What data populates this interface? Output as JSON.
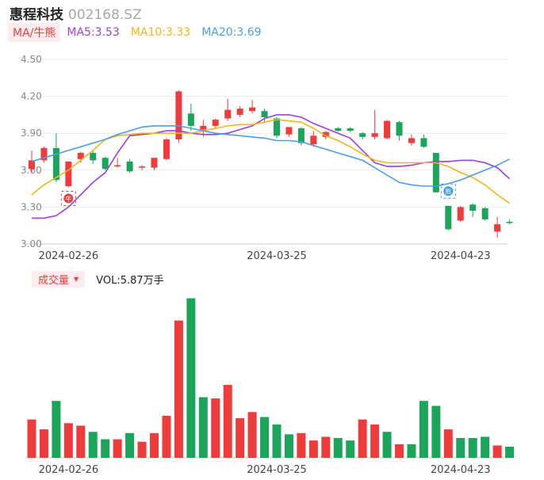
{
  "header": {
    "name": "惠程科技",
    "code": "002168.SZ"
  },
  "ma_bar": {
    "toggle_label": "MA/牛熊",
    "items": [
      {
        "label": "MA5:3.53",
        "color": "#9b3fe0"
      },
      {
        "label": "MA10:3.33",
        "color": "#f2b51c"
      },
      {
        "label": "MA20:3.69",
        "color": "#4a9de8"
      }
    ]
  },
  "volume_bar": {
    "toggle_label": "成交量",
    "value_label": "VOL:5.87万手"
  },
  "colors": {
    "up": "#ee3b3b",
    "down": "#1aa55b",
    "ma5": "#9b3fe0",
    "ma10": "#f2b51c",
    "ma20": "#4a9de8",
    "grid": "#e9e9e9"
  },
  "markers": [
    {
      "icon": "bull-icon",
      "glyph": "牛",
      "color": "#e8413f"
    },
    {
      "icon": "bear-icon",
      "glyph": "熊",
      "color": "#3a9be6"
    }
  ],
  "chart_data": {
    "type": "candlestick",
    "price_axis": {
      "ticks": [
        "4.50",
        "4.20",
        "3.90",
        "3.60",
        "3.30",
        "3.00"
      ],
      "ylim": [
        3.0,
        4.5
      ]
    },
    "x_tick_labels": [
      "2024-02-26",
      "2024-03-25",
      "2024-04-23"
    ],
    "candles": [
      {
        "o": 3.61,
        "c": 3.68,
        "h": 3.76,
        "l": 3.58
      },
      {
        "o": 3.68,
        "c": 3.78,
        "h": 3.79,
        "l": 3.66
      },
      {
        "o": 3.78,
        "c": 3.52,
        "h": 3.9,
        "l": 3.5
      },
      {
        "o": 3.47,
        "c": 3.67,
        "h": 3.67,
        "l": 3.46
      },
      {
        "o": 3.69,
        "c": 3.74,
        "h": 3.75,
        "l": 3.66
      },
      {
        "o": 3.74,
        "c": 3.68,
        "h": 3.76,
        "l": 3.65
      },
      {
        "o": 3.7,
        "c": 3.61,
        "h": 3.71,
        "l": 3.6
      },
      {
        "o": 3.63,
        "c": 3.64,
        "h": 3.7,
        "l": 3.62
      },
      {
        "o": 3.67,
        "c": 3.59,
        "h": 3.69,
        "l": 3.58
      },
      {
        "o": 3.62,
        "c": 3.63,
        "h": 3.64,
        "l": 3.6
      },
      {
        "o": 3.62,
        "c": 3.7,
        "h": 3.7,
        "l": 3.6
      },
      {
        "o": 3.69,
        "c": 3.85,
        "h": 3.86,
        "l": 3.68
      },
      {
        "o": 3.85,
        "c": 4.24,
        "h": 4.25,
        "l": 3.82
      },
      {
        "o": 4.06,
        "c": 3.96,
        "h": 4.14,
        "l": 3.92
      },
      {
        "o": 3.93,
        "c": 3.96,
        "h": 4.01,
        "l": 3.87
      },
      {
        "o": 3.96,
        "c": 4.01,
        "h": 4.02,
        "l": 3.94
      },
      {
        "o": 4.02,
        "c": 4.09,
        "h": 4.18,
        "l": 4.0
      },
      {
        "o": 4.05,
        "c": 4.1,
        "h": 4.12,
        "l": 4.03
      },
      {
        "o": 4.08,
        "c": 4.11,
        "h": 4.17,
        "l": 4.06
      },
      {
        "o": 4.08,
        "c": 4.03,
        "h": 4.1,
        "l": 3.99
      },
      {
        "o": 4.02,
        "c": 3.88,
        "h": 4.03,
        "l": 3.86
      },
      {
        "o": 3.89,
        "c": 3.95,
        "h": 3.95,
        "l": 3.87
      },
      {
        "o": 3.94,
        "c": 3.82,
        "h": 3.95,
        "l": 3.8
      },
      {
        "o": 3.81,
        "c": 3.88,
        "h": 3.92,
        "l": 3.79
      },
      {
        "o": 3.87,
        "c": 3.91,
        "h": 3.92,
        "l": 3.85
      },
      {
        "o": 3.94,
        "c": 3.92,
        "h": 3.95,
        "l": 3.91
      },
      {
        "o": 3.94,
        "c": 3.92,
        "h": 3.95,
        "l": 3.91
      },
      {
        "o": 3.9,
        "c": 3.87,
        "h": 3.91,
        "l": 3.85
      },
      {
        "o": 3.87,
        "c": 3.9,
        "h": 4.09,
        "l": 3.85
      },
      {
        "o": 3.86,
        "c": 4.0,
        "h": 4.01,
        "l": 3.85
      },
      {
        "o": 3.99,
        "c": 3.88,
        "h": 4.0,
        "l": 3.84
      },
      {
        "o": 3.82,
        "c": 3.86,
        "h": 3.89,
        "l": 3.8
      },
      {
        "o": 3.86,
        "c": 3.79,
        "h": 3.89,
        "l": 3.78
      },
      {
        "o": 3.74,
        "c": 3.42,
        "h": 3.74,
        "l": 3.42
      },
      {
        "o": 3.31,
        "c": 3.12,
        "h": 3.31,
        "l": 3.11
      },
      {
        "o": 3.19,
        "c": 3.3,
        "h": 3.31,
        "l": 3.18
      },
      {
        "o": 3.32,
        "c": 3.27,
        "h": 3.33,
        "l": 3.22
      },
      {
        "o": 3.29,
        "c": 3.2,
        "h": 3.3,
        "l": 3.19
      },
      {
        "o": 3.1,
        "c": 3.16,
        "h": 3.22,
        "l": 3.05
      },
      {
        "o": 3.18,
        "c": 3.17,
        "h": 3.2,
        "l": 3.16
      }
    ],
    "series": [
      {
        "name": "MA5",
        "color": "#9b3fe0",
        "values": [
          3.21,
          3.21,
          3.23,
          3.3,
          3.4,
          3.5,
          3.58,
          3.74,
          3.88,
          3.89,
          3.9,
          3.92,
          3.92,
          3.9,
          3.89,
          3.89,
          3.9,
          3.93,
          3.96,
          4.02,
          4.05,
          4.05,
          4.03,
          3.98,
          3.94,
          3.9,
          3.86,
          3.76,
          3.66,
          3.63,
          3.63,
          3.64,
          3.66,
          3.67,
          3.67,
          3.68,
          3.68,
          3.66,
          3.62,
          3.53
        ]
      },
      {
        "name": "MA10",
        "color": "#f2b51c",
        "values": [
          3.4,
          3.48,
          3.54,
          3.6,
          3.68,
          3.76,
          3.85,
          3.88,
          3.89,
          3.9,
          3.9,
          3.9,
          3.9,
          3.9,
          3.92,
          3.94,
          3.96,
          3.97,
          3.97,
          3.99,
          4.01,
          4.0,
          3.99,
          3.94,
          3.88,
          3.84,
          3.79,
          3.73,
          3.68,
          3.66,
          3.66,
          3.66,
          3.66,
          3.66,
          3.63,
          3.58,
          3.54,
          3.48,
          3.4,
          3.33
        ]
      },
      {
        "name": "MA20",
        "color": "#4a9de8",
        "values": [
          3.67,
          3.7,
          3.73,
          3.76,
          3.79,
          3.82,
          3.85,
          3.89,
          3.92,
          3.95,
          3.96,
          3.96,
          3.96,
          3.94,
          3.92,
          3.9,
          3.89,
          3.88,
          3.87,
          3.86,
          3.84,
          3.84,
          3.83,
          3.8,
          3.77,
          3.74,
          3.71,
          3.68,
          3.62,
          3.56,
          3.5,
          3.48,
          3.47,
          3.47,
          3.49,
          3.52,
          3.56,
          3.6,
          3.64,
          3.69
        ]
      }
    ],
    "volume": [
      {
        "v": 3.1,
        "up": true
      },
      {
        "v": 2.3,
        "up": true
      },
      {
        "v": 4.6,
        "up": false
      },
      {
        "v": 2.8,
        "up": true
      },
      {
        "v": 2.6,
        "up": true
      },
      {
        "v": 2.1,
        "up": false
      },
      {
        "v": 1.5,
        "up": false
      },
      {
        "v": 1.5,
        "up": true
      },
      {
        "v": 2.0,
        "up": false
      },
      {
        "v": 1.3,
        "up": true
      },
      {
        "v": 2.0,
        "up": true
      },
      {
        "v": 3.4,
        "up": true
      },
      {
        "v": 11.1,
        "up": true
      },
      {
        "v": 12.9,
        "up": false
      },
      {
        "v": 4.9,
        "up": false
      },
      {
        "v": 4.8,
        "up": true
      },
      {
        "v": 5.9,
        "up": true
      },
      {
        "v": 3.2,
        "up": true
      },
      {
        "v": 3.7,
        "up": true
      },
      {
        "v": 3.3,
        "up": false
      },
      {
        "v": 2.7,
        "up": false
      },
      {
        "v": 1.9,
        "up": false
      },
      {
        "v": 2.0,
        "up": true
      },
      {
        "v": 1.4,
        "up": true
      },
      {
        "v": 1.7,
        "up": true
      },
      {
        "v": 1.6,
        "up": false
      },
      {
        "v": 1.4,
        "up": false
      },
      {
        "v": 3.1,
        "up": true
      },
      {
        "v": 2.7,
        "up": true
      },
      {
        "v": 2.1,
        "up": false
      },
      {
        "v": 1.1,
        "up": true
      },
      {
        "v": 1.1,
        "up": false
      },
      {
        "v": 4.6,
        "up": false
      },
      {
        "v": 4.2,
        "up": false
      },
      {
        "v": 2.3,
        "up": true
      },
      {
        "v": 1.6,
        "up": false
      },
      {
        "v": 1.6,
        "up": false
      },
      {
        "v": 1.7,
        "up": false
      },
      {
        "v": 1.0,
        "up": true
      },
      {
        "v": 0.9,
        "up": false
      }
    ],
    "volume_ylim": [
      0,
      13.0
    ]
  }
}
